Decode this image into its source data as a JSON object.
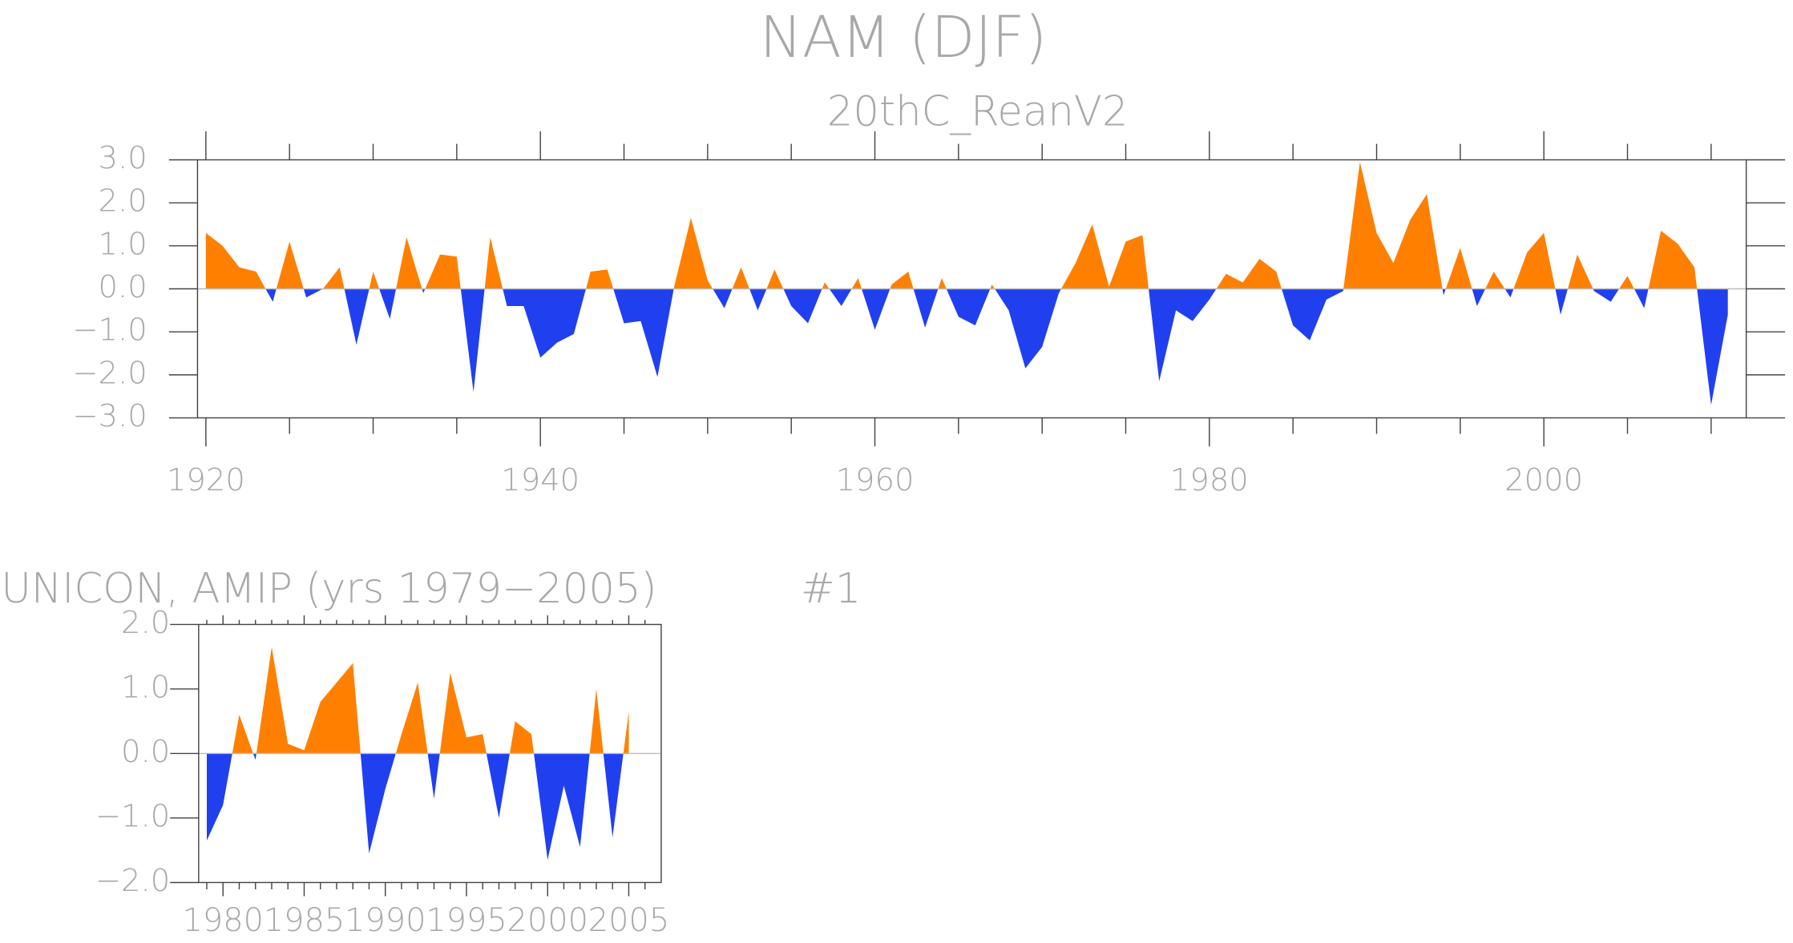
{
  "chart_data": [
    {
      "type": "area",
      "title": "NAM (DJF)",
      "subtitle": "20thC_ReanV2",
      "x": [
        1920,
        1921,
        1922,
        1923,
        1924,
        1925,
        1926,
        1927,
        1928,
        1929,
        1930,
        1931,
        1932,
        1933,
        1934,
        1935,
        1936,
        1937,
        1938,
        1939,
        1940,
        1941,
        1942,
        1943,
        1944,
        1945,
        1946,
        1947,
        1948,
        1949,
        1950,
        1951,
        1952,
        1953,
        1954,
        1955,
        1956,
        1957,
        1958,
        1959,
        1960,
        1961,
        1962,
        1963,
        1964,
        1965,
        1966,
        1967,
        1968,
        1969,
        1970,
        1971,
        1972,
        1973,
        1974,
        1975,
        1976,
        1977,
        1978,
        1979,
        1980,
        1981,
        1982,
        1983,
        1984,
        1985,
        1986,
        1987,
        1988,
        1989,
        1990,
        1991,
        1992,
        1993,
        1994,
        1995,
        1996,
        1997,
        1998,
        1999,
        2000,
        2001,
        2002,
        2003,
        2004,
        2005,
        2006,
        2007,
        2008,
        2009,
        2010,
        2011
      ],
      "values": [
        1.3,
        1.0,
        0.5,
        0.4,
        -0.3,
        1.1,
        -0.2,
        0.0,
        0.5,
        -1.3,
        0.4,
        -0.7,
        1.2,
        -0.1,
        0.8,
        0.75,
        -2.4,
        1.2,
        -0.4,
        -0.4,
        -1.6,
        -1.25,
        -1.05,
        0.4,
        0.45,
        -0.8,
        -0.75,
        -2.05,
        0.05,
        1.65,
        0.2,
        -0.45,
        0.5,
        -0.5,
        0.45,
        -0.4,
        -0.8,
        0.15,
        -0.4,
        0.25,
        -0.95,
        0.1,
        0.4,
        -0.9,
        0.25,
        -0.65,
        -0.85,
        0.1,
        -0.5,
        -1.85,
        -1.35,
        -0.1,
        0.6,
        1.5,
        0.05,
        1.1,
        1.25,
        -2.15,
        -0.5,
        -0.75,
        -0.25,
        0.35,
        0.15,
        0.7,
        0.4,
        -0.85,
        -1.2,
        -0.25,
        -0.05,
        2.95,
        1.3,
        0.6,
        1.6,
        2.2,
        -0.15,
        0.95,
        -0.4,
        0.4,
        -0.2,
        0.85,
        1.3,
        -0.6,
        0.8,
        -0.05,
        -0.3,
        0.3,
        -0.45,
        1.35,
        1.05,
        0.5,
        -2.7,
        -0.6
      ],
      "positive_color": "#ff8000",
      "negative_color": "#2040f0",
      "xlim": [
        1919.5,
        2012.1
      ],
      "xticks": [
        1920,
        1940,
        1960,
        1980,
        2000
      ],
      "xminorticks": [
        1925,
        1930,
        1935,
        1945,
        1950,
        1955,
        1965,
        1970,
        1975,
        1985,
        1990,
        1995,
        2005,
        2010
      ],
      "ylim": [
        -3.0,
        3.0
      ],
      "yticks": [
        {
          "value": -3,
          "label": "−3.0"
        },
        {
          "value": -2,
          "label": "−2.0"
        },
        {
          "value": -1,
          "label": "−1.0"
        },
        {
          "value": 0,
          "label": "0.0"
        },
        {
          "value": 1,
          "label": "1.0"
        },
        {
          "value": 2,
          "label": "2.0"
        },
        {
          "value": 3,
          "label": "3.0"
        }
      ]
    },
    {
      "type": "area",
      "title": "UNICON, AMIP (yrs 1979−2005)",
      "annotation": "#1",
      "x": [
        1979,
        1980,
        1981,
        1982,
        1983,
        1984,
        1985,
        1986,
        1987,
        1988,
        1989,
        1990,
        1991,
        1992,
        1993,
        1994,
        1995,
        1996,
        1997,
        1998,
        1999,
        2000,
        2001,
        2002,
        2003,
        2004,
        2005
      ],
      "values": [
        -1.35,
        -0.8,
        0.6,
        -0.1,
        1.65,
        0.15,
        0.05,
        0.8,
        1.1,
        1.4,
        -1.55,
        -0.55,
        0.3,
        1.1,
        -0.7,
        1.25,
        0.25,
        0.3,
        -1.0,
        0.5,
        0.3,
        -1.65,
        -0.5,
        -1.45,
        1.0,
        -1.3,
        0.65
      ],
      "positive_color": "#ff8000",
      "negative_color": "#2040f0",
      "xlim": [
        1978.5,
        2007
      ],
      "xticks": [
        1980,
        1985,
        1990,
        1995,
        2000,
        2005
      ],
      "xminorticks": [
        1979,
        1981,
        1982,
        1983,
        1984,
        1986,
        1987,
        1988,
        1989,
        1991,
        1992,
        1993,
        1994,
        1996,
        1997,
        1998,
        1999,
        2001,
        2002,
        2003,
        2004,
        2006
      ],
      "ylim": [
        -2.0,
        2.0
      ],
      "yticks": [
        {
          "value": -2,
          "label": "−2.0"
        },
        {
          "value": -1,
          "label": "−1.0"
        },
        {
          "value": 0,
          "label": "0.0"
        },
        {
          "value": 1,
          "label": "1.0"
        },
        {
          "value": 2,
          "label": "2.0"
        }
      ]
    }
  ]
}
